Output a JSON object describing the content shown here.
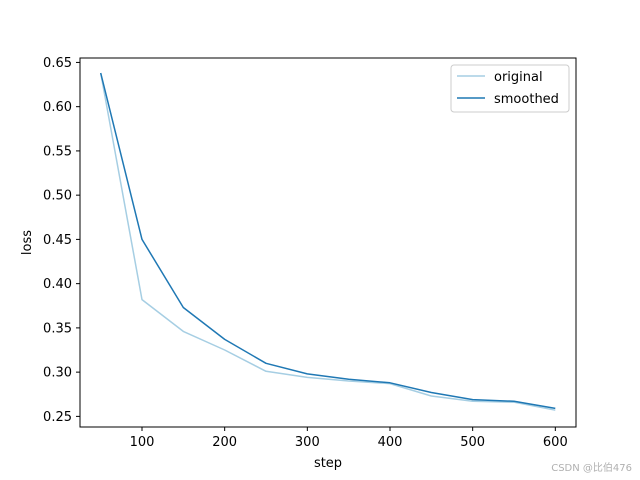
{
  "chart_data": {
    "type": "line",
    "title": "",
    "xlabel": "step",
    "ylabel": "loss",
    "xlim": [
      25,
      625
    ],
    "ylim": [
      0.238,
      0.655
    ],
    "xticks": [
      100,
      200,
      300,
      400,
      500,
      600
    ],
    "xtick_labels": [
      "100",
      "200",
      "300",
      "400",
      "500",
      "600"
    ],
    "yticks": [
      0.25,
      0.3,
      0.35,
      0.4,
      0.45,
      0.5,
      0.55,
      0.6,
      0.65
    ],
    "ytick_labels": [
      "0.25",
      "0.30",
      "0.35",
      "0.40",
      "0.45",
      "0.50",
      "0.55",
      "0.60",
      "0.65"
    ],
    "grid": false,
    "legend": "top-right",
    "x": [
      50,
      100,
      150,
      200,
      250,
      300,
      350,
      400,
      450,
      500,
      550,
      600
    ],
    "series": [
      {
        "name": "original",
        "color": "#a6cee3",
        "values": [
          0.638,
          0.382,
          0.346,
          0.325,
          0.301,
          0.294,
          0.29,
          0.287,
          0.273,
          0.267,
          0.266,
          0.257
        ]
      },
      {
        "name": "smoothed",
        "color": "#1f78b4",
        "values": [
          0.638,
          0.45,
          0.373,
          0.337,
          0.31,
          0.298,
          0.292,
          0.288,
          0.277,
          0.269,
          0.267,
          0.259
        ]
      }
    ]
  },
  "watermark": "CSDN @比伯476"
}
